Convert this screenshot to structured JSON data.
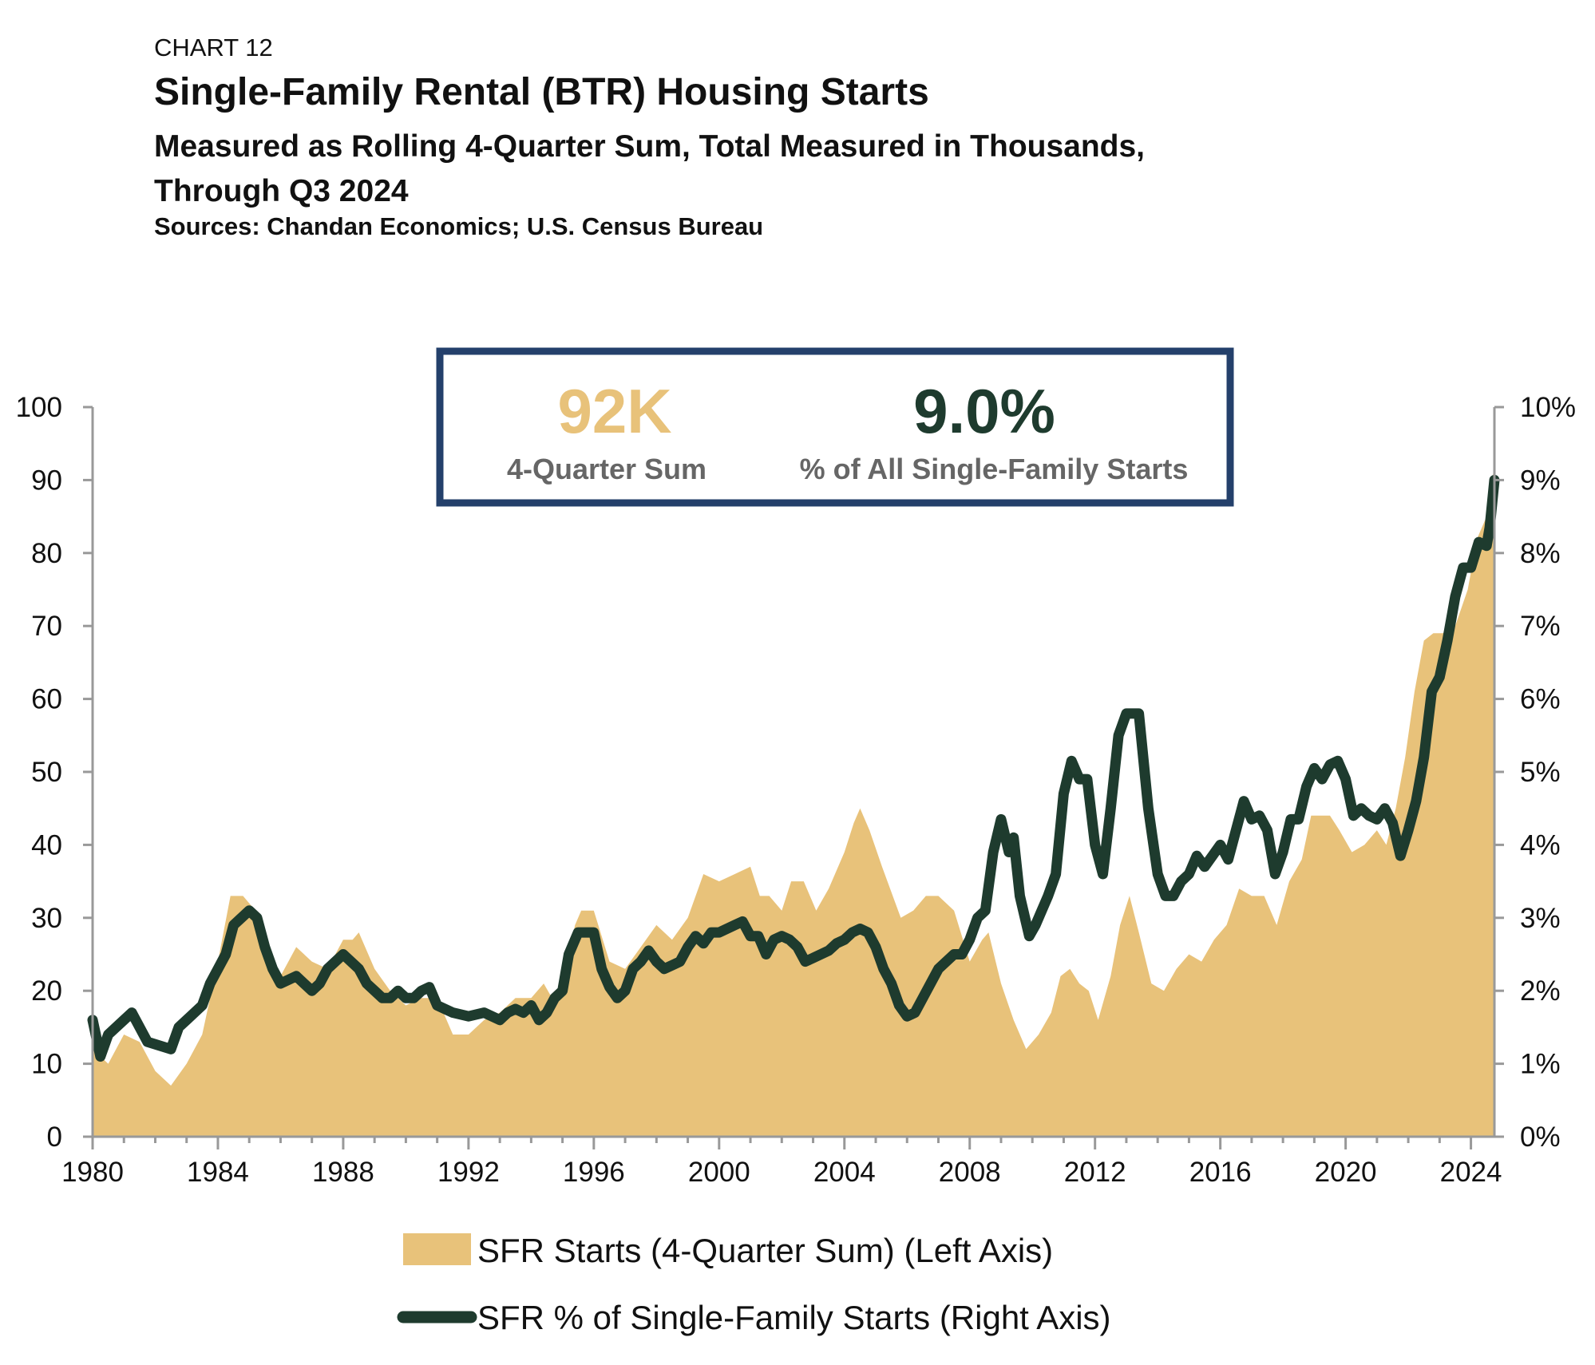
{
  "header": {
    "label": "CHART 12",
    "title": "Single-Family Rental (BTR) Housing Starts",
    "subtitle_line1": "Measured as Rolling 4-Quarter Sum, Total Measured in Thousands,",
    "subtitle_line2": "Through Q3 2024",
    "sources": "Sources: Chandan Economics; U.S. Census Bureau"
  },
  "callout": {
    "left_value": "92K",
    "left_label": "4-Quarter Sum",
    "right_value": "9.0%",
    "right_label": "% of All Single-Family Starts",
    "left_color": "#e8c27a",
    "right_color": "#1e3b2e",
    "border_color": "#24406b"
  },
  "legend": {
    "area_label": "SFR Starts (4-Quarter Sum) (Left Axis)",
    "line_label": "SFR % of Single-Family Starts (Right Axis)"
  },
  "chart_data": {
    "type": "area",
    "x_ticks": [
      "1980",
      "1984",
      "1988",
      "1992",
      "1996",
      "2000",
      "2004",
      "2008",
      "2012",
      "2016",
      "2020",
      "2024"
    ],
    "y_left_ticks": [
      "0",
      "10",
      "20",
      "30",
      "40",
      "50",
      "60",
      "70",
      "80",
      "90",
      "100"
    ],
    "y_right_ticks": [
      "0%",
      "1%",
      "2%",
      "3%",
      "4%",
      "5%",
      "6%",
      "7%",
      "8%",
      "9%",
      "10%"
    ],
    "ylim_left": [
      0,
      100
    ],
    "ylim_right": [
      0,
      10
    ],
    "xlim": [
      1980,
      2024.75
    ],
    "series": [
      {
        "name": "SFR Starts (4-Quarter Sum) (Left Axis)",
        "type": "area",
        "axis": "left",
        "color": "#e8c27a",
        "points": [
          [
            1980.0,
            12
          ],
          [
            1980.5,
            10
          ],
          [
            1981.0,
            14
          ],
          [
            1981.5,
            13
          ],
          [
            1982.0,
            9
          ],
          [
            1982.5,
            7
          ],
          [
            1983.0,
            10
          ],
          [
            1983.5,
            14
          ],
          [
            1984.0,
            24
          ],
          [
            1984.4,
            33
          ],
          [
            1984.8,
            33
          ],
          [
            1985.2,
            31
          ],
          [
            1985.6,
            25
          ],
          [
            1986.0,
            22
          ],
          [
            1986.5,
            26
          ],
          [
            1987.0,
            24
          ],
          [
            1987.5,
            23
          ],
          [
            1988.0,
            27
          ],
          [
            1988.3,
            27
          ],
          [
            1988.5,
            28
          ],
          [
            1989.0,
            23
          ],
          [
            1989.5,
            20
          ],
          [
            1990.0,
            18
          ],
          [
            1990.5,
            19
          ],
          [
            1991.0,
            19
          ],
          [
            1991.5,
            14
          ],
          [
            1992.0,
            14
          ],
          [
            1992.5,
            16
          ],
          [
            1993.0,
            17
          ],
          [
            1993.5,
            19
          ],
          [
            1994.0,
            19
          ],
          [
            1994.4,
            21
          ],
          [
            1994.8,
            18
          ],
          [
            1995.1,
            23
          ],
          [
            1995.4,
            29
          ],
          [
            1995.6,
            31
          ],
          [
            1996.0,
            31
          ],
          [
            1996.5,
            24
          ],
          [
            1997.0,
            23
          ],
          [
            1997.5,
            26
          ],
          [
            1998.0,
            29
          ],
          [
            1998.5,
            27
          ],
          [
            1999.0,
            30
          ],
          [
            1999.5,
            36
          ],
          [
            2000.0,
            35
          ],
          [
            2000.5,
            36
          ],
          [
            2001.0,
            37
          ],
          [
            2001.3,
            33
          ],
          [
            2001.6,
            33
          ],
          [
            2002.0,
            31
          ],
          [
            2002.3,
            35
          ],
          [
            2002.7,
            35
          ],
          [
            2003.1,
            31
          ],
          [
            2003.5,
            34
          ],
          [
            2004.0,
            39
          ],
          [
            2004.3,
            43
          ],
          [
            2004.5,
            45
          ],
          [
            2004.8,
            42
          ],
          [
            2005.2,
            37
          ],
          [
            2005.8,
            30
          ],
          [
            2006.2,
            31
          ],
          [
            2006.6,
            33
          ],
          [
            2007.0,
            33
          ],
          [
            2007.5,
            31
          ],
          [
            2008.0,
            24
          ],
          [
            2008.4,
            27
          ],
          [
            2008.6,
            28
          ],
          [
            2009.0,
            21
          ],
          [
            2009.4,
            16
          ],
          [
            2009.8,
            12
          ],
          [
            2010.2,
            14
          ],
          [
            2010.6,
            17
          ],
          [
            2010.9,
            22
          ],
          [
            2011.2,
            23
          ],
          [
            2011.5,
            21
          ],
          [
            2011.8,
            20
          ],
          [
            2012.1,
            16
          ],
          [
            2012.5,
            22
          ],
          [
            2012.8,
            29
          ],
          [
            2013.1,
            33
          ],
          [
            2013.4,
            28
          ],
          [
            2013.8,
            21
          ],
          [
            2014.2,
            20
          ],
          [
            2014.6,
            23
          ],
          [
            2015.0,
            25
          ],
          [
            2015.4,
            24
          ],
          [
            2015.8,
            27
          ],
          [
            2016.2,
            29
          ],
          [
            2016.6,
            34
          ],
          [
            2017.0,
            33
          ],
          [
            2017.4,
            33
          ],
          [
            2017.8,
            29
          ],
          [
            2018.2,
            35
          ],
          [
            2018.6,
            38
          ],
          [
            2018.9,
            44
          ],
          [
            2019.2,
            44
          ],
          [
            2019.5,
            44
          ],
          [
            2019.8,
            42
          ],
          [
            2020.2,
            39
          ],
          [
            2020.6,
            40
          ],
          [
            2021.0,
            42
          ],
          [
            2021.3,
            40
          ],
          [
            2021.6,
            45
          ],
          [
            2021.9,
            52
          ],
          [
            2022.2,
            61
          ],
          [
            2022.5,
            68
          ],
          [
            2022.8,
            69
          ],
          [
            2023.1,
            69
          ],
          [
            2023.5,
            70
          ],
          [
            2023.9,
            75
          ],
          [
            2024.2,
            82
          ],
          [
            2024.5,
            85
          ],
          [
            2024.75,
            92
          ]
        ]
      },
      {
        "name": "SFR % of Single-Family Starts (Right Axis)",
        "type": "line",
        "axis": "right",
        "color": "#1e3b2e",
        "points": [
          [
            1980.0,
            1.6
          ],
          [
            1980.25,
            1.1
          ],
          [
            1980.5,
            1.4
          ],
          [
            1981.0,
            1.6
          ],
          [
            1981.25,
            1.7
          ],
          [
            1981.75,
            1.3
          ],
          [
            1982.5,
            1.2
          ],
          [
            1982.75,
            1.5
          ],
          [
            1983.0,
            1.6
          ],
          [
            1983.5,
            1.8
          ],
          [
            1983.75,
            2.1
          ],
          [
            1984.0,
            2.3
          ],
          [
            1984.25,
            2.5
          ],
          [
            1984.5,
            2.9
          ],
          [
            1984.75,
            3.0
          ],
          [
            1985.0,
            3.1
          ],
          [
            1985.25,
            3.0
          ],
          [
            1985.5,
            2.6
          ],
          [
            1985.75,
            2.3
          ],
          [
            1986.0,
            2.1
          ],
          [
            1986.5,
            2.2
          ],
          [
            1986.75,
            2.1
          ],
          [
            1987.0,
            2.0
          ],
          [
            1987.25,
            2.1
          ],
          [
            1987.5,
            2.3
          ],
          [
            1987.75,
            2.4
          ],
          [
            1988.0,
            2.5
          ],
          [
            1988.25,
            2.4
          ],
          [
            1988.5,
            2.3
          ],
          [
            1988.75,
            2.1
          ],
          [
            1989.0,
            2.0
          ],
          [
            1989.25,
            1.9
          ],
          [
            1989.5,
            1.9
          ],
          [
            1989.75,
            2.0
          ],
          [
            1990.0,
            1.9
          ],
          [
            1990.25,
            1.9
          ],
          [
            1990.5,
            2.0
          ],
          [
            1990.75,
            2.05
          ],
          [
            1991.0,
            1.8
          ],
          [
            1991.5,
            1.7
          ],
          [
            1992.0,
            1.65
          ],
          [
            1992.5,
            1.7
          ],
          [
            1993.0,
            1.6
          ],
          [
            1993.25,
            1.7
          ],
          [
            1993.5,
            1.75
          ],
          [
            1993.75,
            1.7
          ],
          [
            1994.0,
            1.8
          ],
          [
            1994.25,
            1.6
          ],
          [
            1994.5,
            1.7
          ],
          [
            1994.75,
            1.9
          ],
          [
            1995.0,
            2.0
          ],
          [
            1995.2,
            2.5
          ],
          [
            1995.5,
            2.8
          ],
          [
            1995.75,
            2.8
          ],
          [
            1996.0,
            2.8
          ],
          [
            1996.25,
            2.3
          ],
          [
            1996.5,
            2.05
          ],
          [
            1996.75,
            1.9
          ],
          [
            1997.0,
            2.0
          ],
          [
            1997.25,
            2.3
          ],
          [
            1997.5,
            2.4
          ],
          [
            1997.75,
            2.55
          ],
          [
            1998.0,
            2.4
          ],
          [
            1998.25,
            2.3
          ],
          [
            1998.5,
            2.35
          ],
          [
            1998.75,
            2.4
          ],
          [
            1999.0,
            2.6
          ],
          [
            1999.25,
            2.75
          ],
          [
            1999.5,
            2.65
          ],
          [
            1999.75,
            2.8
          ],
          [
            2000.0,
            2.8
          ],
          [
            2000.5,
            2.9
          ],
          [
            2000.75,
            2.95
          ],
          [
            2001.0,
            2.75
          ],
          [
            2001.25,
            2.75
          ],
          [
            2001.5,
            2.5
          ],
          [
            2001.75,
            2.7
          ],
          [
            2002.0,
            2.75
          ],
          [
            2002.25,
            2.7
          ],
          [
            2002.5,
            2.6
          ],
          [
            2002.75,
            2.4
          ],
          [
            2003.0,
            2.45
          ],
          [
            2003.5,
            2.55
          ],
          [
            2003.75,
            2.65
          ],
          [
            2004.0,
            2.7
          ],
          [
            2004.25,
            2.8
          ],
          [
            2004.5,
            2.85
          ],
          [
            2004.75,
            2.8
          ],
          [
            2005.0,
            2.6
          ],
          [
            2005.25,
            2.3
          ],
          [
            2005.5,
            2.1
          ],
          [
            2005.75,
            1.8
          ],
          [
            2006.0,
            1.65
          ],
          [
            2006.25,
            1.7
          ],
          [
            2006.5,
            1.9
          ],
          [
            2006.75,
            2.1
          ],
          [
            2007.0,
            2.3
          ],
          [
            2007.25,
            2.4
          ],
          [
            2007.5,
            2.5
          ],
          [
            2007.75,
            2.5
          ],
          [
            2008.0,
            2.7
          ],
          [
            2008.25,
            3.0
          ],
          [
            2008.5,
            3.1
          ],
          [
            2008.75,
            3.9
          ],
          [
            2009.0,
            4.35
          ],
          [
            2009.25,
            3.9
          ],
          [
            2009.4,
            4.1
          ],
          [
            2009.6,
            3.3
          ],
          [
            2009.9,
            2.75
          ],
          [
            2010.1,
            2.9
          ],
          [
            2010.5,
            3.3
          ],
          [
            2010.75,
            3.6
          ],
          [
            2011.0,
            4.7
          ],
          [
            2011.25,
            5.15
          ],
          [
            2011.5,
            4.9
          ],
          [
            2011.75,
            4.9
          ],
          [
            2012.0,
            4.0
          ],
          [
            2012.25,
            3.6
          ],
          [
            2012.5,
            4.5
          ],
          [
            2012.75,
            5.5
          ],
          [
            2013.0,
            5.8
          ],
          [
            2013.4,
            5.8
          ],
          [
            2013.7,
            4.5
          ],
          [
            2014.0,
            3.6
          ],
          [
            2014.25,
            3.3
          ],
          [
            2014.5,
            3.3
          ],
          [
            2014.75,
            3.5
          ],
          [
            2015.0,
            3.6
          ],
          [
            2015.25,
            3.85
          ],
          [
            2015.5,
            3.7
          ],
          [
            2015.75,
            3.85
          ],
          [
            2016.0,
            4.0
          ],
          [
            2016.25,
            3.8
          ],
          [
            2016.5,
            4.2
          ],
          [
            2016.75,
            4.6
          ],
          [
            2017.0,
            4.35
          ],
          [
            2017.25,
            4.4
          ],
          [
            2017.5,
            4.2
          ],
          [
            2017.75,
            3.6
          ],
          [
            2018.0,
            3.9
          ],
          [
            2018.25,
            4.35
          ],
          [
            2018.5,
            4.35
          ],
          [
            2018.75,
            4.8
          ],
          [
            2019.0,
            5.05
          ],
          [
            2019.25,
            4.9
          ],
          [
            2019.5,
            5.1
          ],
          [
            2019.75,
            5.15
          ],
          [
            2020.0,
            4.9
          ],
          [
            2020.25,
            4.4
          ],
          [
            2020.5,
            4.5
          ],
          [
            2020.75,
            4.4
          ],
          [
            2021.0,
            4.35
          ],
          [
            2021.25,
            4.5
          ],
          [
            2021.5,
            4.3
          ],
          [
            2021.75,
            3.85
          ],
          [
            2022.0,
            4.2
          ],
          [
            2022.25,
            4.6
          ],
          [
            2022.5,
            5.2
          ],
          [
            2022.75,
            6.1
          ],
          [
            2023.0,
            6.3
          ],
          [
            2023.25,
            6.8
          ],
          [
            2023.5,
            7.4
          ],
          [
            2023.75,
            7.8
          ],
          [
            2024.0,
            7.8
          ],
          [
            2024.25,
            8.15
          ],
          [
            2024.5,
            8.1
          ],
          [
            2024.6,
            8.35
          ],
          [
            2024.75,
            9.0
          ]
        ]
      }
    ],
    "grid": false,
    "legend_position": "bottom"
  }
}
